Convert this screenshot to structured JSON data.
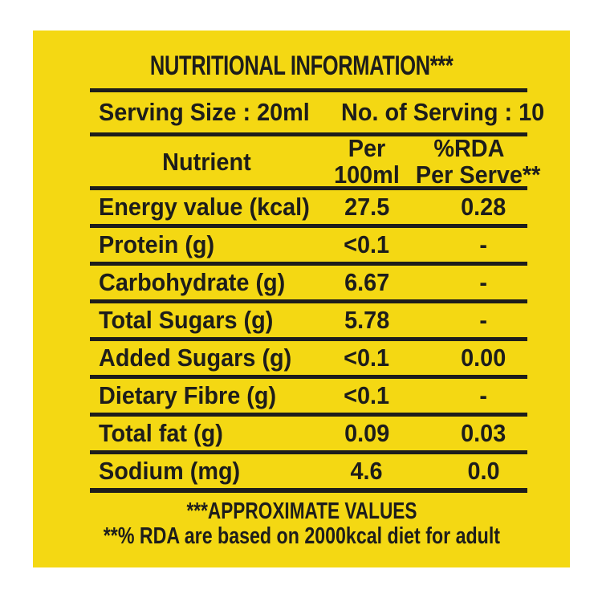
{
  "label": {
    "title": "NUTRITIONAL INFORMATION***",
    "serving": {
      "size_text": "Serving Size : 20ml",
      "count_text": "No. of Serving : 10"
    },
    "table": {
      "headers": {
        "nutrient": "Nutrient",
        "per_line1": "Per",
        "per_line2": "100ml",
        "rda_line1": "%RDA",
        "rda_line2": "Per Serve**"
      },
      "rows": [
        {
          "nutrient": "Energy value (kcal)",
          "per_100ml": "27.5",
          "rda_per_serve": "0.28"
        },
        {
          "nutrient": "Protein (g)",
          "per_100ml": "<0.1",
          "rda_per_serve": "-"
        },
        {
          "nutrient": "Carbohydrate (g)",
          "per_100ml": "6.67",
          "rda_per_serve": "-"
        },
        {
          "nutrient": "Total Sugars (g)",
          "per_100ml": "5.78",
          "rda_per_serve": "-"
        },
        {
          "nutrient": "Added Sugars (g)",
          "per_100ml": "<0.1",
          "rda_per_serve": "0.00"
        },
        {
          "nutrient": "Dietary Fibre (g)",
          "per_100ml": "<0.1",
          "rda_per_serve": "-"
        },
        {
          "nutrient": "Total fat (g)",
          "per_100ml": "0.09",
          "rda_per_serve": "0.03"
        },
        {
          "nutrient": "Sodium (mg)",
          "per_100ml": "4.6",
          "rda_per_serve": "0.0"
        }
      ]
    },
    "footnotes": {
      "line1": "***APPROXIMATE VALUES",
      "line2": "**% RDA are based on 2000kcal diet for adult"
    },
    "colors": {
      "background": "#F4D813",
      "text": "#1D1D1B"
    }
  }
}
